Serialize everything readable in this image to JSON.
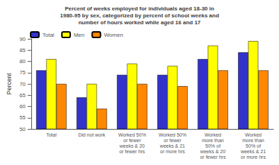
{
  "chart_data": {
    "type": "bar",
    "title": "Percent of weeks employed for individuals aged 18-30 in\n1980-95 by sex, categorized by percent of school weeks and\nnumber of hours worked while aged 16 and 17",
    "categories": [
      "Total",
      "Did not work",
      "Worked 50%\nor fewer\nweeks & 20\nor fewer hrs",
      "Worked 50%\nor fewer\nweeks & 21\nor more hrs",
      "Worked\nmore than\n50% of\nweeks & 20\nor fewer hrs",
      "Worked\nmore than\n50% of\nweeks & 21\nor more hrs"
    ],
    "series": [
      {
        "name": "Total",
        "color": "#3333cc",
        "values": [
          76,
          64,
          74,
          74,
          81,
          84
        ]
      },
      {
        "name": "Men",
        "color": "#ffff00",
        "values": [
          81,
          70,
          79,
          78,
          87,
          89
        ]
      },
      {
        "name": "Women",
        "color": "#ff8800",
        "values": [
          70,
          59,
          70,
          69,
          76,
          76
        ]
      }
    ],
    "ylabel": "Percent",
    "ylim": [
      50,
      90
    ],
    "yticks": [
      50,
      55,
      60,
      65,
      70,
      75,
      80,
      85,
      90
    ],
    "grid": false,
    "legend": "upper left"
  }
}
